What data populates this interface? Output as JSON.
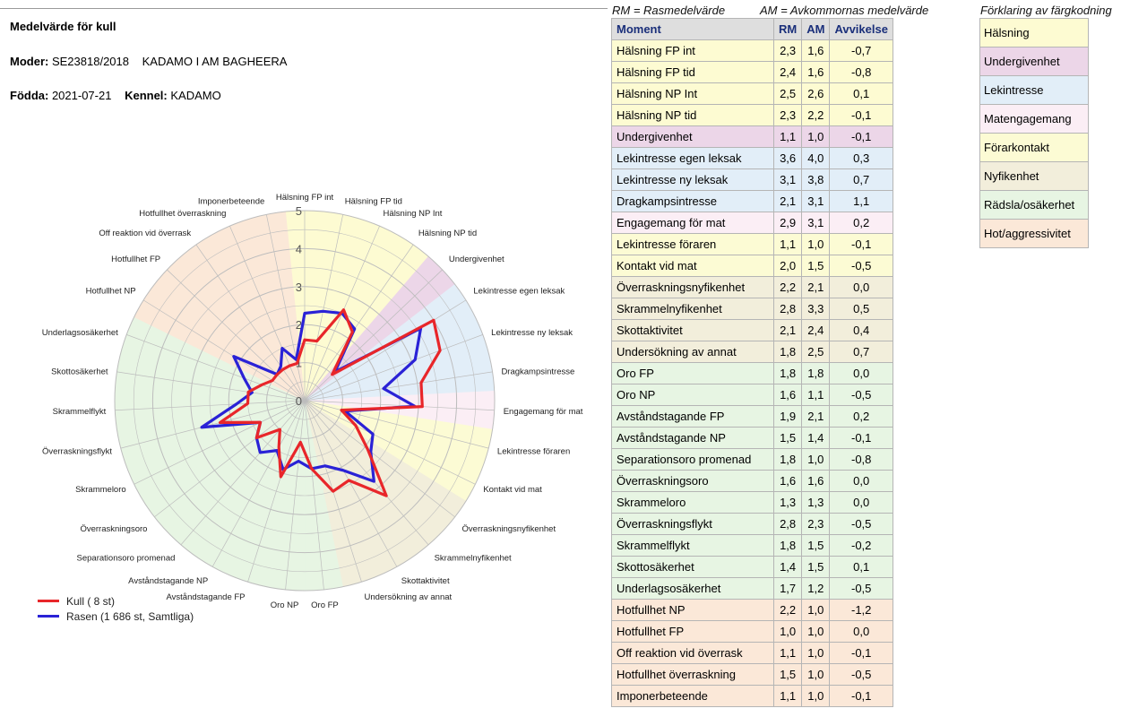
{
  "header": {
    "title": "Medelvärde för kull",
    "moder_label": "Moder:",
    "moder_value": "SE23818/2018",
    "moder_name": "KADAMO I AM BAGHEERA",
    "fodda_label": "Födda:",
    "fodda_value": "2021-07-21",
    "kennel_label": "Kennel:",
    "kennel_value": "KADAMO"
  },
  "abbrev": {
    "rm": "RM = Rasmedelvärde",
    "am": "AM = Avkommornas medelvärde"
  },
  "table": {
    "headers": [
      "Moment",
      "RM",
      "AM",
      "Avvikelse"
    ],
    "rows": [
      {
        "moment": "Hälsning FP int",
        "rm": "2,3",
        "am": "1,6",
        "avv": "-0,7",
        "group": "Hälsning"
      },
      {
        "moment": "Hälsning FP tid",
        "rm": "2,4",
        "am": "1,6",
        "avv": "-0,8",
        "group": "Hälsning"
      },
      {
        "moment": "Hälsning NP Int",
        "rm": "2,5",
        "am": "2,6",
        "avv": "0,1",
        "group": "Hälsning"
      },
      {
        "moment": "Hälsning NP tid",
        "rm": "2,3",
        "am": "2,2",
        "avv": "-0,1",
        "group": "Hälsning"
      },
      {
        "moment": "Undergivenhet",
        "rm": "1,1",
        "am": "1,0",
        "avv": "-0,1",
        "group": "Undergivenhet"
      },
      {
        "moment": "Lekintresse egen leksak",
        "rm": "3,6",
        "am": "4,0",
        "avv": "0,3",
        "group": "Lekintresse"
      },
      {
        "moment": "Lekintresse ny leksak",
        "rm": "3,1",
        "am": "3,8",
        "avv": "0,7",
        "group": "Lekintresse"
      },
      {
        "moment": "Dragkampsintresse",
        "rm": "2,1",
        "am": "3,1",
        "avv": "1,1",
        "group": "Lekintresse"
      },
      {
        "moment": "Engagemang för mat",
        "rm": "2,9",
        "am": "3,1",
        "avv": "0,2",
        "group": "Matengagemang"
      },
      {
        "moment": "Lekintresse föraren",
        "rm": "1,1",
        "am": "1,0",
        "avv": "-0,1",
        "group": "Förarkontakt"
      },
      {
        "moment": "Kontakt vid mat",
        "rm": "2,0",
        "am": "1,5",
        "avv": "-0,5",
        "group": "Förarkontakt"
      },
      {
        "moment": "Överraskningsnyfikenhet",
        "rm": "2,2",
        "am": "2,1",
        "avv": "0,0",
        "group": "Nyfikenhet"
      },
      {
        "moment": "Skrammelnyfikenhet",
        "rm": "2,8",
        "am": "3,3",
        "avv": "0,5",
        "group": "Nyfikenhet"
      },
      {
        "moment": "Skottaktivitet",
        "rm": "2,1",
        "am": "2,4",
        "avv": "0,4",
        "group": "Nyfikenhet"
      },
      {
        "moment": "Undersökning av annat",
        "rm": "1,8",
        "am": "2,5",
        "avv": "0,7",
        "group": "Nyfikenhet"
      },
      {
        "moment": "Oro FP",
        "rm": "1,8",
        "am": "1,8",
        "avv": "0,0",
        "group": "Rädsla/osäkerhet"
      },
      {
        "moment": "Oro NP",
        "rm": "1,6",
        "am": "1,1",
        "avv": "-0,5",
        "group": "Rädsla/osäkerhet"
      },
      {
        "moment": "Avståndstagande FP",
        "rm": "1,9",
        "am": "2,1",
        "avv": "0,2",
        "group": "Rädsla/osäkerhet"
      },
      {
        "moment": "Avståndstagande NP",
        "rm": "1,5",
        "am": "1,4",
        "avv": "-0,1",
        "group": "Rädsla/osäkerhet"
      },
      {
        "moment": "Separationsoro promenad",
        "rm": "1,8",
        "am": "1,0",
        "avv": "-0,8",
        "group": "Rädsla/osäkerhet"
      },
      {
        "moment": "Överraskningsoro",
        "rm": "1,6",
        "am": "1,6",
        "avv": "0,0",
        "group": "Rädsla/osäkerhet"
      },
      {
        "moment": "Skrammeloro",
        "rm": "1,3",
        "am": "1,3",
        "avv": "0,0",
        "group": "Rädsla/osäkerhet"
      },
      {
        "moment": "Överraskningsflykt",
        "rm": "2,8",
        "am": "2,3",
        "avv": "-0,5",
        "group": "Rädsla/osäkerhet"
      },
      {
        "moment": "Skrammelflykt",
        "rm": "1,8",
        "am": "1,5",
        "avv": "-0,2",
        "group": "Rädsla/osäkerhet"
      },
      {
        "moment": "Skottosäkerhet",
        "rm": "1,4",
        "am": "1,5",
        "avv": "0,1",
        "group": "Rädsla/osäkerhet"
      },
      {
        "moment": "Underlagsosäkerhet",
        "rm": "1,7",
        "am": "1,2",
        "avv": "-0,5",
        "group": "Rädsla/osäkerhet"
      },
      {
        "moment": "Hotfullhet NP",
        "rm": "2,2",
        "am": "1,0",
        "avv": "-1,2",
        "group": "Hot/aggressivitet"
      },
      {
        "moment": "Hotfullhet FP",
        "rm": "1,0",
        "am": "1,0",
        "avv": "0,0",
        "group": "Hot/aggressivitet"
      },
      {
        "moment": "Off reaktion vid överrask",
        "rm": "1,1",
        "am": "1,0",
        "avv": "-0,1",
        "group": "Hot/aggressivitet"
      },
      {
        "moment": "Hotfullhet överraskning",
        "rm": "1,5",
        "am": "1,0",
        "avv": "-0,5",
        "group": "Hot/aggressivitet"
      },
      {
        "moment": "Imponerbeteende",
        "rm": "1,1",
        "am": "1,0",
        "avv": "-0,1",
        "group": "Hot/aggressivitet"
      }
    ]
  },
  "color_key": {
    "title": "Förklaring av färgkodning",
    "items": [
      {
        "label": "Hälsning",
        "color": "#fdfbd2"
      },
      {
        "label": "Undergivenhet",
        "color": "#ecd6e8"
      },
      {
        "label": "Lekintresse",
        "color": "#e2eef8"
      },
      {
        "label": "Matengagemang",
        "color": "#fbeef5"
      },
      {
        "label": "Förarkontakt",
        "color": "#fcfbd4"
      },
      {
        "label": "Nyfikenhet",
        "color": "#f2eedb"
      },
      {
        "label": "Rädsla/osäkerhet",
        "color": "#e7f5e3"
      },
      {
        "label": "Hot/aggressivitet",
        "color": "#fbe8d8"
      }
    ]
  },
  "chart_data": {
    "type": "radar",
    "rlim": [
      0,
      5
    ],
    "r_ticks": [
      "0",
      "1",
      "2",
      "3",
      "4",
      "5"
    ],
    "categories": [
      "Hälsning FP int",
      "Hälsning FP tid",
      "Hälsning NP Int",
      "Hälsning NP tid",
      "Undergivenhet",
      "Lekintresse egen leksak",
      "Lekintresse ny leksak",
      "Dragkampsintresse",
      "Engagemang för mat",
      "Lekintresse föraren",
      "Kontakt vid mat",
      "Överraskningsnyfikenhet",
      "Skrammelnyfikenhet",
      "Skottaktivitet",
      "Undersökning av annat",
      "Oro FP",
      "Oro NP",
      "Avståndstagande FP",
      "Avståndstagande NP",
      "Separationsoro promenad",
      "Överraskningsoro",
      "Skrammeloro",
      "Överraskningsflykt",
      "Skrammelflykt",
      "Skottosäkerhet",
      "Underlagsosäkerhet",
      "Hotfullhet NP",
      "Hotfullhet FP",
      "Off reaktion vid överrask",
      "Hotfullhet överraskning",
      "Imponerbeteende"
    ],
    "series": [
      {
        "name": "Kull ( 8 st)",
        "color": "#e8262a",
        "values": [
          1.6,
          1.6,
          2.6,
          2.2,
          1.0,
          4.0,
          3.8,
          3.1,
          3.1,
          1.0,
          1.5,
          2.1,
          3.3,
          2.4,
          2.5,
          1.8,
          1.1,
          2.1,
          1.4,
          1.0,
          1.6,
          1.3,
          2.3,
          1.5,
          1.5,
          1.2,
          1.0,
          1.0,
          1.0,
          1.0,
          1.0
        ]
      },
      {
        "name": "Rasen (1 686 st, Samtliga)",
        "color": "#2a22d6",
        "values": [
          2.3,
          2.4,
          2.5,
          2.3,
          1.1,
          3.6,
          3.1,
          2.1,
          2.9,
          1.1,
          2.0,
          2.2,
          2.8,
          2.1,
          1.8,
          1.8,
          1.6,
          1.9,
          1.5,
          1.8,
          1.6,
          1.3,
          2.8,
          1.8,
          1.4,
          1.7,
          2.2,
          1.0,
          1.1,
          1.5,
          1.1
        ]
      }
    ]
  }
}
